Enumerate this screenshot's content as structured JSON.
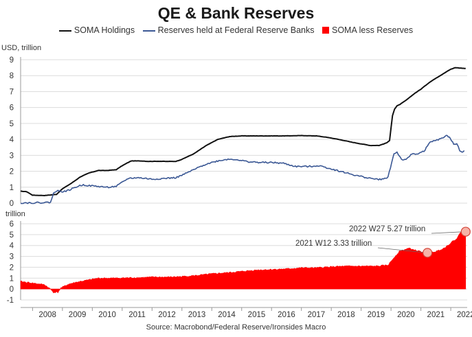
{
  "chart_data": [
    {
      "type": "line",
      "title": "QE & Bank Reserves",
      "ylabel": "USD, trillion",
      "ylim": [
        0,
        9
      ],
      "yticks": [
        0,
        1,
        2,
        3,
        4,
        5,
        6,
        7,
        8,
        9
      ],
      "x_range": [
        2007.6,
        2022.55
      ],
      "grid": true,
      "legend_position": "top",
      "series": [
        {
          "name": "SOMA Holdings",
          "color": "#111111",
          "x": [
            2007.6,
            2007.8,
            2008.0,
            2008.4,
            2008.8,
            2009.0,
            2009.3,
            2009.6,
            2009.9,
            2010.2,
            2010.5,
            2010.8,
            2011.0,
            2011.3,
            2011.6,
            2011.9,
            2012.2,
            2012.5,
            2012.8,
            2013.0,
            2013.4,
            2013.8,
            2014.2,
            2014.6,
            2015.0,
            2015.5,
            2016.0,
            2016.5,
            2017.0,
            2017.5,
            2017.9,
            2018.3,
            2018.7,
            2019.0,
            2019.3,
            2019.6,
            2019.85,
            2019.95,
            2020.05,
            2020.12,
            2020.2,
            2020.3,
            2020.5,
            2020.8,
            2021.0,
            2021.3,
            2021.6,
            2021.9,
            2022.0,
            2022.15,
            2022.3,
            2022.5
          ],
          "values": [
            0.75,
            0.72,
            0.5,
            0.48,
            0.55,
            0.9,
            1.25,
            1.65,
            1.9,
            2.05,
            2.05,
            2.1,
            2.35,
            2.65,
            2.65,
            2.62,
            2.63,
            2.62,
            2.62,
            2.75,
            3.1,
            3.6,
            4.0,
            4.18,
            4.22,
            4.22,
            4.22,
            4.22,
            4.24,
            4.22,
            4.12,
            3.98,
            3.82,
            3.72,
            3.62,
            3.62,
            3.78,
            3.92,
            5.5,
            5.9,
            6.1,
            6.2,
            6.45,
            6.9,
            7.15,
            7.6,
            7.95,
            8.3,
            8.4,
            8.5,
            8.48,
            8.45
          ]
        },
        {
          "name": "Reserves held at Federal Reserve Banks",
          "color": "#3a5794",
          "x": [
            2007.6,
            2008.0,
            2008.6,
            2008.7,
            2008.85,
            2008.95,
            2009.2,
            2009.5,
            2009.7,
            2009.9,
            2010.2,
            2010.5,
            2010.8,
            2011.0,
            2011.2,
            2011.5,
            2011.8,
            2012.0,
            2012.4,
            2012.8,
            2013.0,
            2013.4,
            2013.8,
            2014.2,
            2014.5,
            2014.8,
            2015.2,
            2015.6,
            2016.0,
            2016.4,
            2016.8,
            2017.2,
            2017.6,
            2018.0,
            2018.4,
            2018.8,
            2019.2,
            2019.5,
            2019.75,
            2019.9,
            2020.1,
            2020.2,
            2020.35,
            2020.5,
            2020.7,
            2020.9,
            2021.1,
            2021.3,
            2021.5,
            2021.7,
            2021.85,
            2021.95,
            2022.1,
            2022.2,
            2022.3,
            2022.35,
            2022.45
          ],
          "values": [
            0.02,
            0.02,
            0.05,
            0.6,
            0.85,
            0.7,
            0.8,
            1.05,
            1.15,
            1.1,
            1.05,
            1.0,
            1.05,
            1.3,
            1.55,
            1.6,
            1.55,
            1.5,
            1.55,
            1.6,
            1.75,
            2.1,
            2.45,
            2.65,
            2.75,
            2.75,
            2.6,
            2.55,
            2.55,
            2.5,
            2.3,
            2.3,
            2.35,
            2.15,
            1.95,
            1.75,
            1.6,
            1.5,
            1.5,
            1.65,
            3.1,
            3.2,
            2.75,
            2.7,
            3.1,
            3.1,
            3.25,
            3.8,
            3.95,
            4.05,
            4.25,
            4.15,
            3.7,
            3.75,
            3.3,
            3.2,
            3.3
          ]
        }
      ],
      "x_axis_years": [
        "2008",
        "2009",
        "2010",
        "2011",
        "2012",
        "2013",
        "2014",
        "2015",
        "2016",
        "2017",
        "2018",
        "2019",
        "2020",
        "2021",
        "2022"
      ]
    },
    {
      "type": "area",
      "ylabel": "trillion",
      "ylim": [
        -1,
        6
      ],
      "yticks": [
        -1,
        0,
        1,
        2,
        3,
        4,
        5,
        6
      ],
      "x_range": [
        2007.6,
        2022.55
      ],
      "grid": true,
      "series": [
        {
          "name": "SOMA less Reserves",
          "color": "#ff0000",
          "x": [
            2007.6,
            2008.0,
            2008.4,
            2008.6,
            2008.7,
            2008.85,
            2008.95,
            2009.2,
            2009.5,
            2009.9,
            2010.2,
            2010.5,
            2010.8,
            2011.0,
            2011.5,
            2012.0,
            2012.5,
            2013.0,
            2013.5,
            2014.0,
            2014.5,
            2015.0,
            2015.5,
            2016.0,
            2016.5,
            2017.0,
            2017.5,
            2018.0,
            2018.5,
            2019.0,
            2019.5,
            2019.9,
            2020.1,
            2020.3,
            2020.6,
            2020.9,
            2021.2,
            2021.5,
            2021.8,
            2022.0,
            2022.2,
            2022.35,
            2022.5
          ],
          "values": [
            0.7,
            0.55,
            0.4,
            0.0,
            -0.3,
            -0.3,
            0.1,
            0.45,
            0.65,
            0.85,
            1.0,
            1.0,
            1.0,
            1.02,
            1.05,
            1.1,
            1.1,
            1.15,
            1.25,
            1.4,
            1.5,
            1.62,
            1.75,
            1.8,
            1.85,
            1.95,
            1.95,
            2.05,
            2.1,
            2.1,
            2.1,
            2.2,
            2.9,
            3.5,
            3.75,
            3.5,
            3.33,
            3.45,
            3.8,
            4.25,
            4.65,
            5.27,
            5.2
          ]
        }
      ],
      "annotations": [
        {
          "label": "2021 W12 3.33 trillion",
          "x": 2021.22,
          "y": 3.33
        },
        {
          "label": "2022 W27 5.27 trillion",
          "x": 2022.5,
          "y": 5.27
        }
      ]
    }
  ],
  "source": "Source: Macrobond/Federal Reserve/Ironsides Macro"
}
